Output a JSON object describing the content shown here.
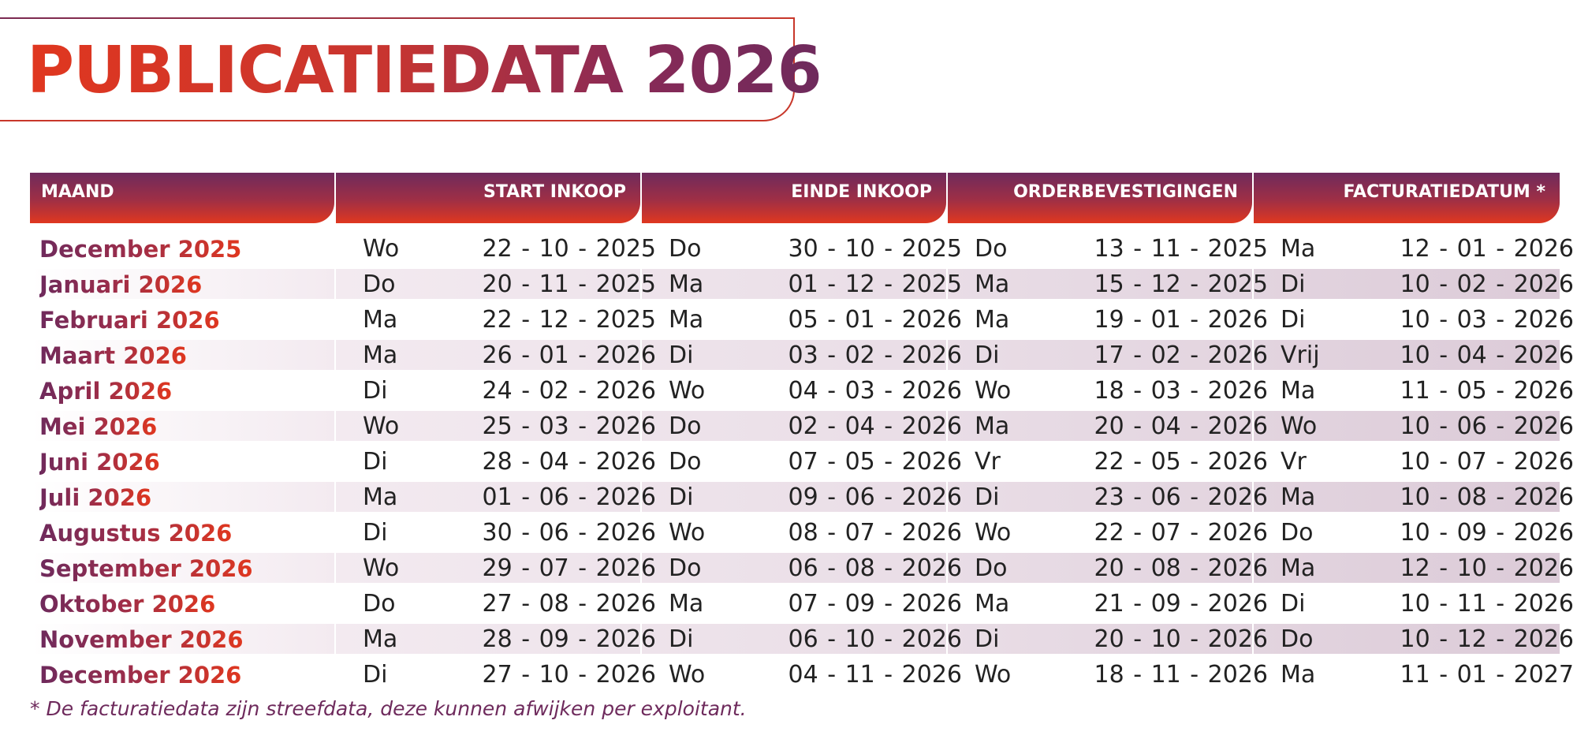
{
  "title": "PUBLICATIEDATA 2026",
  "headers": {
    "maand": "MAAND",
    "start_inkoop": "START INKOOP",
    "einde_inkoop": "EINDE INKOOP",
    "orderbevestigingen": "ORDERBEVESTIGINGEN",
    "facturatiedatum": "FACTURATIEDATUM *"
  },
  "rows": [
    {
      "maand": "December 2025",
      "start": {
        "day": "Wo",
        "date": "22 - 10 - 2025"
      },
      "einde": {
        "day": "Do",
        "date": "30 - 10 - 2025"
      },
      "order": {
        "day": "Do",
        "date": "13 - 11 - 2025"
      },
      "factuur": {
        "day": "Ma",
        "date": "12 - 01 - 2026"
      }
    },
    {
      "maand": "Januari 2026",
      "start": {
        "day": "Do",
        "date": "20 - 11 - 2025"
      },
      "einde": {
        "day": "Ma",
        "date": "01 - 12 - 2025"
      },
      "order": {
        "day": "Ma",
        "date": "15 - 12 - 2025"
      },
      "factuur": {
        "day": "Di",
        "date": "10 - 02 - 2026"
      }
    },
    {
      "maand": "Februari 2026",
      "start": {
        "day": "Ma",
        "date": "22 - 12 - 2025"
      },
      "einde": {
        "day": "Ma",
        "date": "05 - 01 - 2026"
      },
      "order": {
        "day": "Ma",
        "date": "19 - 01 - 2026"
      },
      "factuur": {
        "day": "Di",
        "date": "10 - 03 - 2026"
      }
    },
    {
      "maand": "Maart 2026",
      "start": {
        "day": "Ma",
        "date": "26 - 01 - 2026"
      },
      "einde": {
        "day": "Di",
        "date": "03 - 02 - 2026"
      },
      "order": {
        "day": "Di",
        "date": "17 - 02 - 2026"
      },
      "factuur": {
        "day": "Vrij",
        "date": "10 - 04 - 2026"
      }
    },
    {
      "maand": "April 2026",
      "start": {
        "day": "Di",
        "date": "24 - 02 - 2026"
      },
      "einde": {
        "day": "Wo",
        "date": "04 - 03 - 2026"
      },
      "order": {
        "day": "Wo",
        "date": "18 - 03 - 2026"
      },
      "factuur": {
        "day": "Ma",
        "date": "11 - 05 - 2026"
      }
    },
    {
      "maand": "Mei 2026",
      "start": {
        "day": "Wo",
        "date": "25 - 03 - 2026"
      },
      "einde": {
        "day": "Do",
        "date": "02 - 04 - 2026"
      },
      "order": {
        "day": "Ma",
        "date": "20 - 04 - 2026"
      },
      "factuur": {
        "day": "Wo",
        "date": "10 - 06 - 2026"
      }
    },
    {
      "maand": "Juni 2026",
      "start": {
        "day": "Di",
        "date": "28 - 04 - 2026"
      },
      "einde": {
        "day": "Do",
        "date": "07 - 05 - 2026"
      },
      "order": {
        "day": "Vr",
        "date": "22 - 05 - 2026"
      },
      "factuur": {
        "day": "Vr",
        "date": "10 - 07 - 2026"
      }
    },
    {
      "maand": "Juli 2026",
      "start": {
        "day": "Ma",
        "date": "01 - 06 - 2026"
      },
      "einde": {
        "day": "Di",
        "date": "09 - 06 - 2026"
      },
      "order": {
        "day": "Di",
        "date": "23 - 06 - 2026"
      },
      "factuur": {
        "day": "Ma",
        "date": "10 - 08 - 2026"
      }
    },
    {
      "maand": "Augustus 2026",
      "start": {
        "day": "Di",
        "date": "30 - 06 - 2026"
      },
      "einde": {
        "day": "Wo",
        "date": "08 - 07 - 2026"
      },
      "order": {
        "day": "Wo",
        "date": "22 - 07 - 2026"
      },
      "factuur": {
        "day": "Do",
        "date": "10 - 09 - 2026"
      }
    },
    {
      "maand": "September 2026",
      "start": {
        "day": "Wo",
        "date": "29 - 07 - 2026"
      },
      "einde": {
        "day": "Do",
        "date": "06 - 08 - 2026"
      },
      "order": {
        "day": "Do",
        "date": "20 - 08 - 2026"
      },
      "factuur": {
        "day": "Ma",
        "date": "12 - 10 - 2026"
      }
    },
    {
      "maand": "Oktober 2026",
      "start": {
        "day": "Do",
        "date": "27 - 08 - 2026"
      },
      "einde": {
        "day": "Ma",
        "date": "07 - 09 - 2026"
      },
      "order": {
        "day": "Ma",
        "date": "21 - 09 - 2026"
      },
      "factuur": {
        "day": "Di",
        "date": "10 - 11 - 2026"
      }
    },
    {
      "maand": "November 2026",
      "start": {
        "day": "Ma",
        "date": "28 - 09 - 2026"
      },
      "einde": {
        "day": "Di",
        "date": "06 - 10 - 2026"
      },
      "order": {
        "day": "Di",
        "date": "20 - 10 - 2026"
      },
      "factuur": {
        "day": "Do",
        "date": "10 - 12 - 2026"
      }
    },
    {
      "maand": "December 2026",
      "start": {
        "day": "Di",
        "date": "27 - 10 - 2026"
      },
      "einde": {
        "day": "Wo",
        "date": "04 - 11 - 2026"
      },
      "order": {
        "day": "Wo",
        "date": "18 - 11 - 2026"
      },
      "factuur": {
        "day": "Ma",
        "date": "11 - 01 - 2027"
      }
    }
  ],
  "footnote": "* De facturatiedata zijn streefdata, deze kunnen afwijken per exploitant.",
  "colors": {
    "accent_red": "#e0371f",
    "accent_purple": "#6e2a5c"
  }
}
